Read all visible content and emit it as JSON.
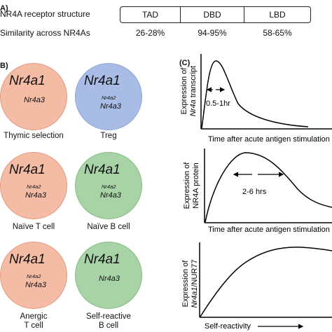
{
  "panelA": {
    "letter": "A)",
    "structure_label": "NR4A receptor structure",
    "similarity_label": "Similarity across NR4As",
    "domains": [
      {
        "name": "TAD",
        "similarity": "26-28%"
      },
      {
        "name": "DBD",
        "similarity": "94-95%"
      },
      {
        "name": "LBD",
        "similarity": "58-65%"
      }
    ]
  },
  "panelB": {
    "letter": "B)",
    "colors": {
      "salmon": "#f4bba5",
      "salmon_border": "#e59b80",
      "blue": "#a9bce6",
      "blue_border": "#8ea5d6",
      "green": "#a8d3a6",
      "green_border": "#86ba84"
    },
    "cells": [
      {
        "main": "Nr4a1",
        "secondary": "",
        "tertiary": "Nr4a3",
        "label_line1": "Thymic selection",
        "label_line2": "",
        "color": "salmon"
      },
      {
        "main": "Nr4a1",
        "secondary": "Nr4a2",
        "tertiary": "Nr4a3",
        "label_line1": "Treg",
        "label_line2": "",
        "color": "blue"
      },
      {
        "main": "Nr4a1",
        "secondary": "Nr4a2",
        "tertiary": "Nr4a3",
        "label_line1": "Naïve T cell",
        "label_line2": "",
        "color": "salmon"
      },
      {
        "main": "Nr4a1",
        "secondary": "Nr4a2",
        "tertiary": "Nr4a3",
        "label_line1": "Naïve B cell",
        "label_line2": "",
        "color": "green"
      },
      {
        "main": "Nr4a1",
        "secondary": "Nr4a2",
        "tertiary": "Nr4a3",
        "label_line1": "Anergic",
        "label_line2": "T cell",
        "color": "salmon"
      },
      {
        "main": "Nr4a1",
        "secondary": "",
        "tertiary": "Nr4a3",
        "label_line1": "Self-reactive",
        "label_line2": "B cell",
        "color": "green"
      }
    ]
  },
  "panelC": {
    "letter": "(C)",
    "plot1": {
      "ylabel_line1": "Expression of",
      "ylabel_line2_pre": "",
      "ylabel_line2_italic": "Nr4a",
      "ylabel_line2_post": " transcript",
      "annotation": "0.5-1hr",
      "xlabel": "Time after acute antigen stimulation"
    },
    "plot2": {
      "ylabel_line1": "Expression of",
      "ylabel_line2_pre": "NR4A protein",
      "annotation": "2-6 hrs",
      "xlabel": "Time after acute antigen stimulation"
    },
    "plot3": {
      "ylabel_line1": "Expression of",
      "ylabel_line2_italic": "Nr4a1",
      "ylabel_line2_post": "/NUR77",
      "xlabel": "Self-reactivity"
    }
  }
}
